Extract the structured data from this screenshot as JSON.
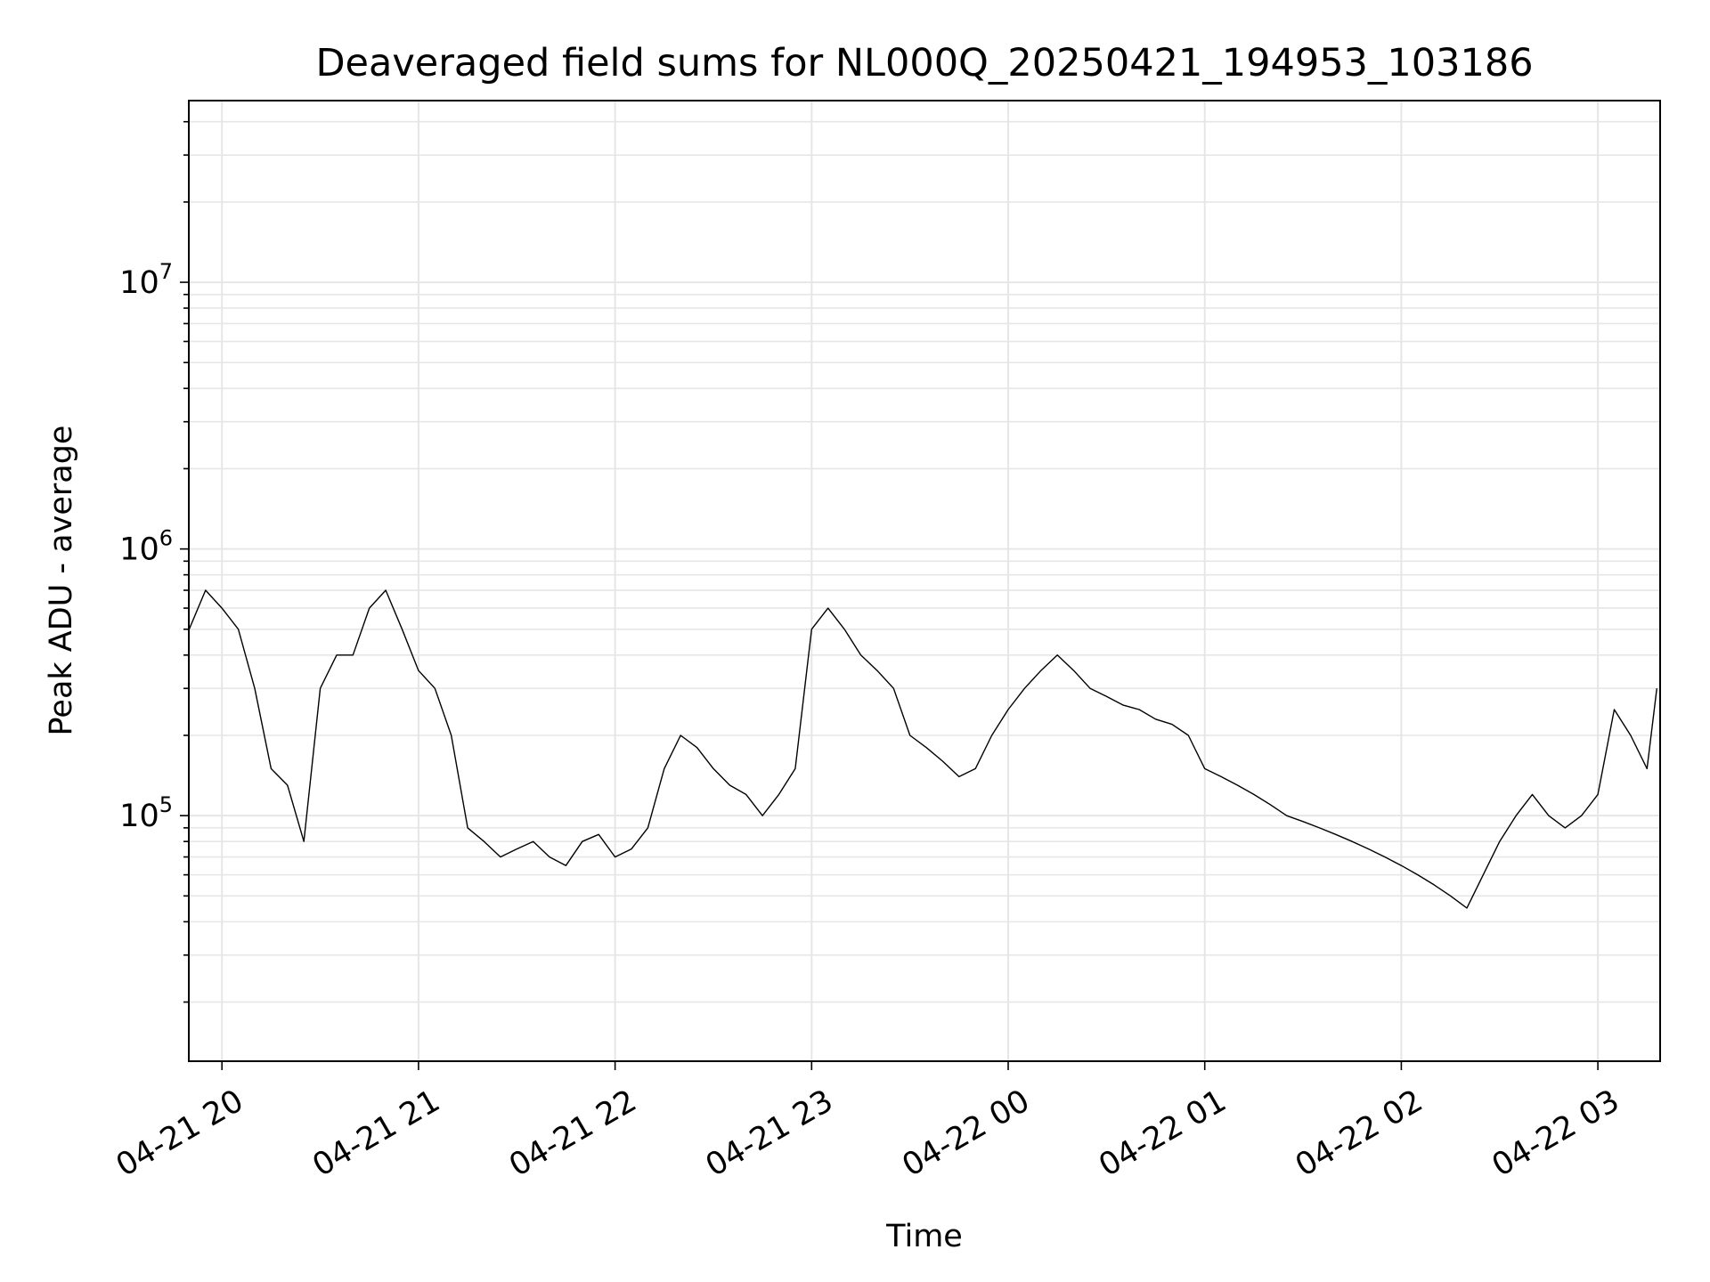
{
  "chart_data": {
    "type": "line",
    "title": "Deaveraged field sums for NL000Q_20250421_194953_103186",
    "xlabel": "Time",
    "ylabel": "Peak ADU - average",
    "x_scale": "time",
    "y_scale": "log",
    "xlim": [
      "2025-04-21 19:49:53",
      "2025-04-22 03:19:00"
    ],
    "ylim": [
      12000,
      48000000
    ],
    "x_ticks": [
      {
        "value": "2025-04-21 20:00",
        "label": "04-21 20"
      },
      {
        "value": "2025-04-21 21:00",
        "label": "04-21 21"
      },
      {
        "value": "2025-04-21 22:00",
        "label": "04-21 22"
      },
      {
        "value": "2025-04-21 23:00",
        "label": "04-21 23"
      },
      {
        "value": "2025-04-22 00:00",
        "label": "04-22 00"
      },
      {
        "value": "2025-04-22 01:00",
        "label": "04-22 01"
      },
      {
        "value": "2025-04-22 02:00",
        "label": "04-22 02"
      },
      {
        "value": "2025-04-22 03:00",
        "label": "04-22 03"
      }
    ],
    "y_ticks": [
      {
        "value": 100000,
        "base": "10",
        "exp": "5"
      },
      {
        "value": 1000000,
        "base": "10",
        "exp": "6"
      },
      {
        "value": 10000000,
        "base": "10",
        "exp": "7"
      }
    ],
    "grid": true,
    "legend": "none",
    "line_color": "#000000",
    "grid_color": "#e6e6e6",
    "series": [
      {
        "x": [
          "2025-04-21 19:50",
          "2025-04-21 19:55",
          "2025-04-21 20:00",
          "2025-04-21 20:05",
          "2025-04-21 20:10",
          "2025-04-21 20:15",
          "2025-04-21 20:20",
          "2025-04-21 20:25",
          "2025-04-21 20:30",
          "2025-04-21 20:35",
          "2025-04-21 20:40",
          "2025-04-21 20:45",
          "2025-04-21 20:50",
          "2025-04-21 20:55",
          "2025-04-21 21:00",
          "2025-04-21 21:05",
          "2025-04-21 21:10",
          "2025-04-21 21:15",
          "2025-04-21 21:20",
          "2025-04-21 21:25",
          "2025-04-21 21:30",
          "2025-04-21 21:35",
          "2025-04-21 21:40",
          "2025-04-21 21:45",
          "2025-04-21 21:50",
          "2025-04-21 21:55",
          "2025-04-21 22:00",
          "2025-04-21 22:05",
          "2025-04-21 22:10",
          "2025-04-21 22:15",
          "2025-04-21 22:20",
          "2025-04-21 22:25",
          "2025-04-21 22:30",
          "2025-04-21 22:35",
          "2025-04-21 22:40",
          "2025-04-21 22:45",
          "2025-04-21 22:50",
          "2025-04-21 22:55",
          "2025-04-21 23:00",
          "2025-04-21 23:05",
          "2025-04-21 23:10",
          "2025-04-21 23:15",
          "2025-04-21 23:20",
          "2025-04-21 23:25",
          "2025-04-21 23:30",
          "2025-04-21 23:35",
          "2025-04-21 23:40",
          "2025-04-21 23:45",
          "2025-04-21 23:50",
          "2025-04-21 23:55",
          "2025-04-22 00:00",
          "2025-04-22 00:05",
          "2025-04-22 00:10",
          "2025-04-22 00:15",
          "2025-04-22 00:20",
          "2025-04-22 00:25",
          "2025-04-22 00:30",
          "2025-04-22 00:35",
          "2025-04-22 00:40",
          "2025-04-22 00:45",
          "2025-04-22 00:50",
          "2025-04-22 00:55",
          "2025-04-22 01:00",
          "2025-04-22 01:05",
          "2025-04-22 01:10",
          "2025-04-22 01:15",
          "2025-04-22 01:20",
          "2025-04-22 01:25",
          "2025-04-22 01:30",
          "2025-04-22 01:35",
          "2025-04-22 01:40",
          "2025-04-22 01:45",
          "2025-04-22 01:50",
          "2025-04-22 01:55",
          "2025-04-22 02:00",
          "2025-04-22 02:05",
          "2025-04-22 02:10",
          "2025-04-22 02:15",
          "2025-04-22 02:20",
          "2025-04-22 02:25",
          "2025-04-22 02:30",
          "2025-04-22 02:35",
          "2025-04-22 02:40",
          "2025-04-22 02:45",
          "2025-04-22 02:50",
          "2025-04-22 02:55",
          "2025-04-22 03:00",
          "2025-04-22 03:05",
          "2025-04-22 03:10",
          "2025-04-22 03:15",
          "2025-04-22 03:18"
        ],
        "y": [
          500000,
          700000,
          600000,
          500000,
          300000,
          150000,
          130000,
          80000,
          300000,
          400000,
          400000,
          600000,
          700000,
          500000,
          350000,
          300000,
          200000,
          90000,
          80000,
          70000,
          75000,
          80000,
          70000,
          65000,
          80000,
          85000,
          70000,
          75000,
          90000,
          150000,
          200000,
          180000,
          150000,
          130000,
          120000,
          100000,
          120000,
          150000,
          500000,
          600000,
          500000,
          400000,
          350000,
          300000,
          200000,
          180000,
          160000,
          140000,
          150000,
          200000,
          250000,
          300000,
          350000,
          400000,
          350000,
          300000,
          280000,
          260000,
          250000,
          230000,
          220000,
          200000,
          150000,
          140000,
          130000,
          120000,
          110000,
          100000,
          95000,
          90000,
          85000,
          80000,
          75000,
          70000,
          65000,
          60000,
          55000,
          50000,
          45000,
          60000,
          80000,
          100000,
          120000,
          100000,
          90000,
          100000,
          120000,
          250000,
          200000,
          150000,
          300000
        ]
      }
    ]
  }
}
